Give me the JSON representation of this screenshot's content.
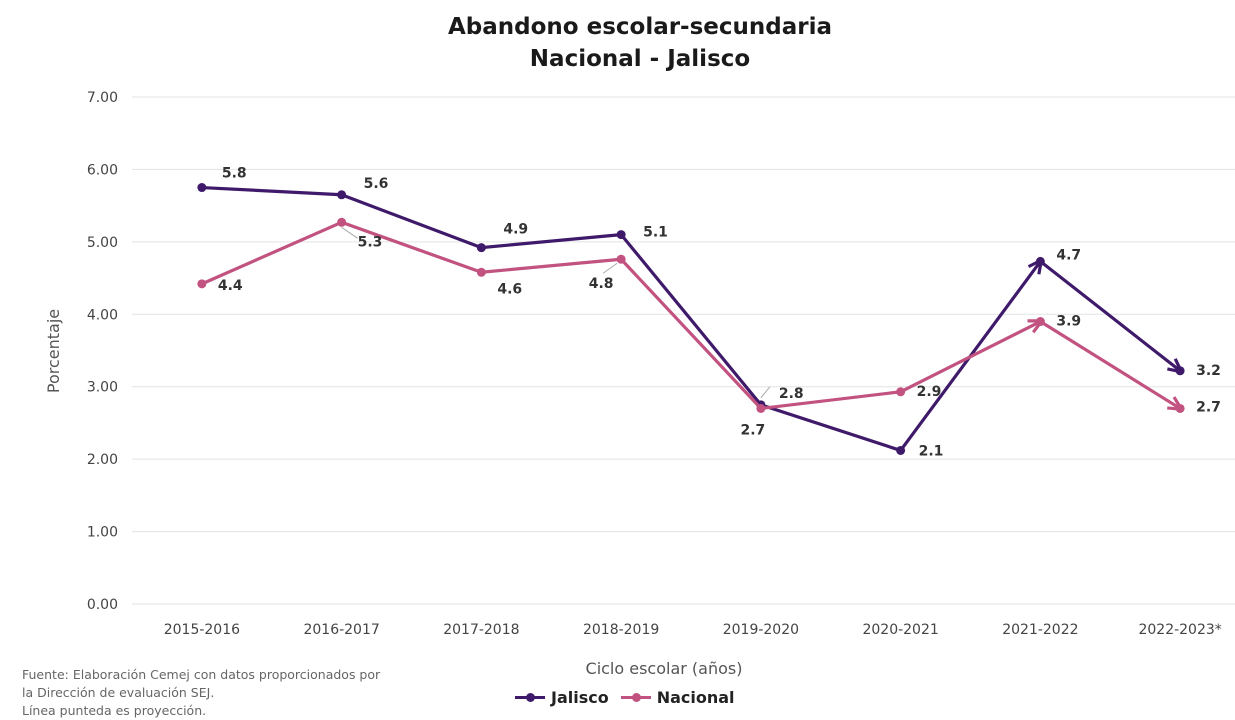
{
  "title": "Abandono escolar-secundaria",
  "subtitle": "Nacional - Jalisco",
  "source_lines": [
    "Fuente: Elaboración Cemej con datos proporcionados por",
    "la Dirección de evaluación SEJ.",
    "Línea punteda es proyección."
  ],
  "colors": {
    "jalisco": "#3f1a6b",
    "nacional": "#c2527f",
    "grid": "#e3e3e3",
    "axis_text": "#444444"
  },
  "chart_data": {
    "type": "line",
    "xlabel": "Ciclo escolar (años)",
    "ylabel": "Porcentaje",
    "ylim": [
      0,
      7
    ],
    "y_ticks": [
      "0.00",
      "1.00",
      "2.00",
      "3.00",
      "4.00",
      "5.00",
      "6.00",
      "7.00"
    ],
    "categories": [
      "2015-2016",
      "2016-2017",
      "2017-2018",
      "2018-2019",
      "2019-2020",
      "2020-2021",
      "2021-2022",
      "2022-2023*"
    ],
    "grid": true,
    "legend_position": "bottom",
    "series": [
      {
        "name": "Jalisco",
        "values": [
          5.75,
          5.65,
          4.92,
          5.1,
          2.75,
          2.12,
          4.73,
          3.22
        ],
        "labels": [
          "5.8",
          "5.6",
          "4.9",
          "5.1",
          "2.8",
          "2.1",
          "4.7",
          "3.2"
        ]
      },
      {
        "name": "Nacional",
        "values": [
          4.42,
          5.27,
          4.58,
          4.76,
          2.7,
          2.93,
          3.9,
          2.7
        ],
        "labels": [
          "4.4",
          "5.3",
          "4.6",
          "4.8",
          "2.7",
          "2.9",
          "3.9",
          "2.7"
        ]
      }
    ]
  }
}
